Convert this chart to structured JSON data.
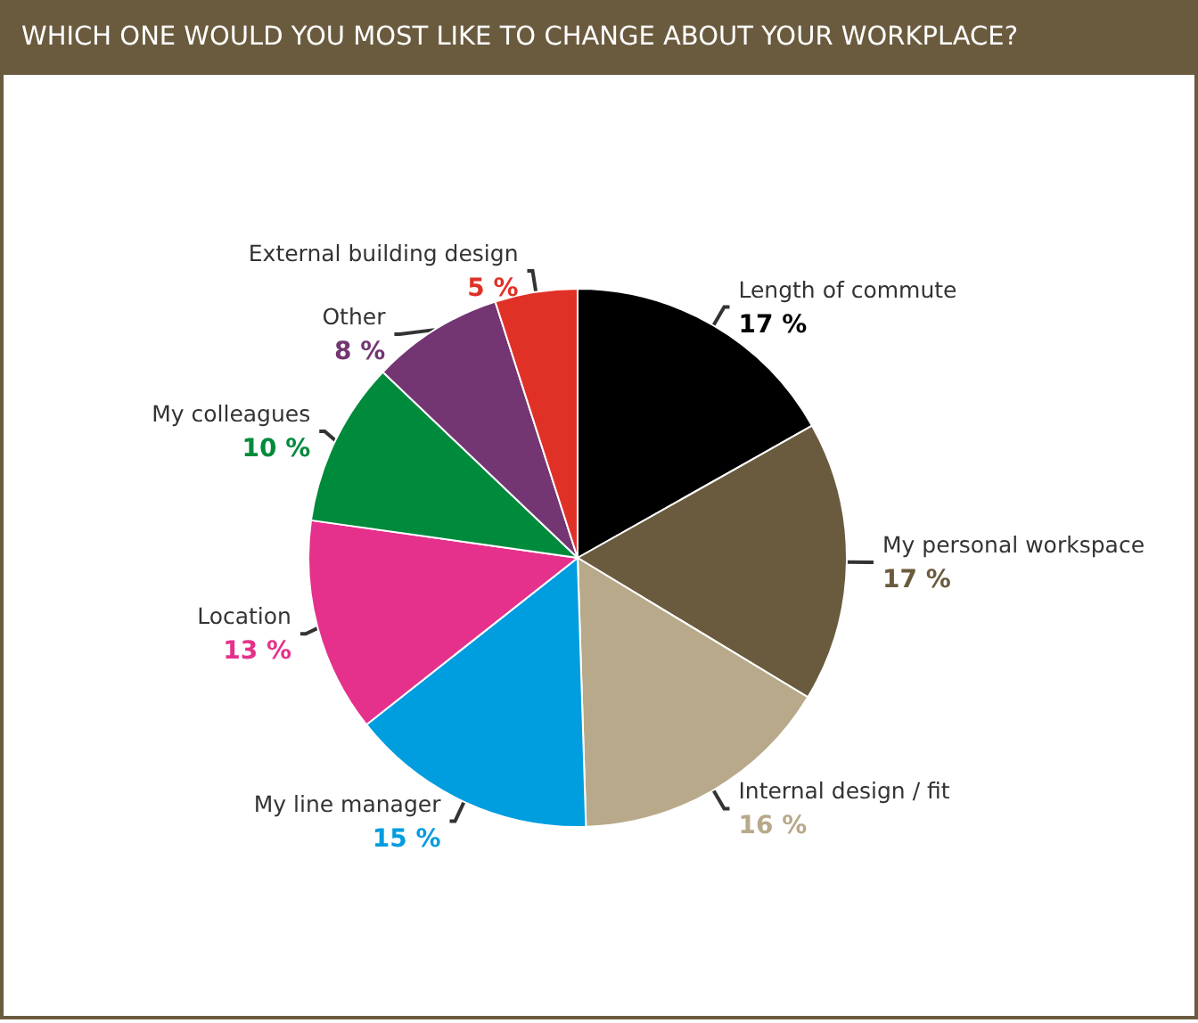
{
  "chart_data": {
    "type": "pie",
    "title": "WHICH ONE WOULD YOU MOST LIKE TO CHANGE ABOUT YOUR WORKPLACE?",
    "categories": [
      "Length of commute",
      "My personal workspace",
      "Internal design / fit",
      "My line manager",
      "Location",
      "My colleagues",
      "Other",
      "External building design"
    ],
    "values": [
      17,
      17,
      16,
      15,
      13,
      10,
      8,
      5
    ],
    "value_labels": [
      "17 %",
      "17 %",
      "16 %",
      "15 %",
      "13 %",
      "10 %",
      "8 %",
      "5 %"
    ],
    "colors": [
      "#000000",
      "#6b5b3e",
      "#b8a98a",
      "#009ddf",
      "#e5318b",
      "#008a3c",
      "#733672",
      "#e03127"
    ],
    "legend": false
  }
}
